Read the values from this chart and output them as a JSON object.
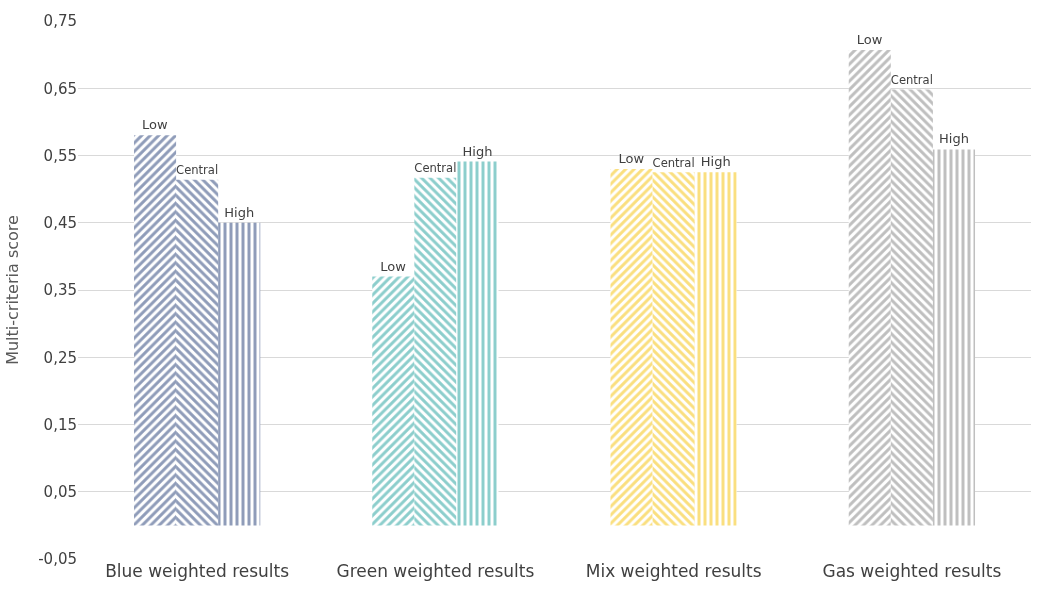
{
  "chart_data": {
    "type": "bar",
    "ylabel": "Multi-criteria score",
    "categories": [
      "Blue weighted results",
      "Green weighted results",
      "Mix weighted results",
      "Gas weighted results"
    ],
    "series": [
      {
        "name": "Low",
        "colors": [
          "#1f3a73",
          "#1a9e9a",
          "#f5c000",
          "#808080"
        ],
        "values": [
          0.58,
          0.37,
          0.53,
          0.707
        ]
      },
      {
        "name": "Central",
        "colors": [
          "#1f3a73",
          "#1a9e9a",
          "#f5c000",
          "#808080"
        ],
        "values": [
          0.514,
          0.517,
          0.525,
          0.648
        ]
      },
      {
        "name": "High",
        "colors": [
          "#1f3a73",
          "#1a9e9a",
          "#f5c000",
          "#808080"
        ],
        "values": [
          0.45,
          0.541,
          0.525,
          0.559
        ]
      }
    ],
    "ylim": [
      -0.05,
      0.75
    ],
    "yticks": [
      {
        "value": -0.05,
        "label": "-0,05"
      },
      {
        "value": 0.05,
        "label": "0,05"
      },
      {
        "value": 0.15,
        "label": "0,15"
      },
      {
        "value": 0.25,
        "label": "0,25"
      },
      {
        "value": 0.35,
        "label": "0,35"
      },
      {
        "value": 0.45,
        "label": "0,45"
      },
      {
        "value": 0.55,
        "label": "0,55"
      },
      {
        "value": 0.65,
        "label": "0,65"
      },
      {
        "value": 0.75,
        "label": "0,75"
      }
    ],
    "grid": "y",
    "legend": false
  }
}
